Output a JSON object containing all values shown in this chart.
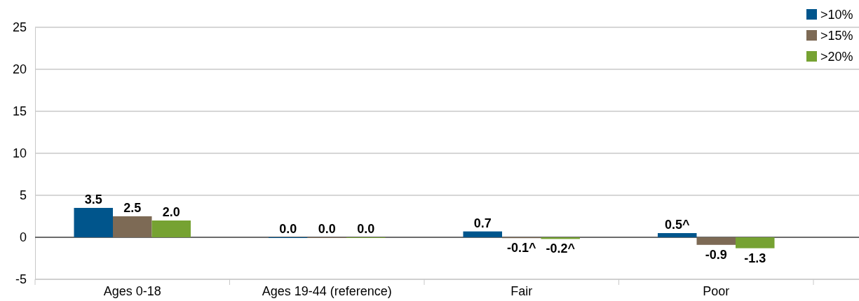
{
  "chart_data": {
    "type": "bar",
    "categories": [
      "Ages 0-18",
      "Ages 19-44 (reference)",
      "Fair",
      "Poor"
    ],
    "series": [
      {
        "name": ">10%",
        "color": "#00558c",
        "values": [
          3.5,
          0.0,
          0.7,
          0.5
        ],
        "value_labels": [
          "3.5",
          "0.0",
          "0.7",
          "0.5^"
        ]
      },
      {
        "name": ">15%",
        "color": "#7d6a55",
        "values": [
          2.5,
          0.0,
          -0.1,
          -0.9
        ],
        "value_labels": [
          "2.5",
          "0.0",
          "-0.1^",
          "-0.9"
        ]
      },
      {
        "name": ">20%",
        "color": "#76a232",
        "values": [
          2.0,
          0.0,
          -0.2,
          -1.3
        ],
        "value_labels": [
          "2.0",
          "0.0",
          "-0.2^",
          "-1.3"
        ]
      }
    ],
    "ylim": [
      -5,
      25
    ],
    "yticks": [
      -5,
      0,
      5,
      10,
      15,
      20,
      25
    ],
    "grid": "y",
    "legend": "top right"
  }
}
